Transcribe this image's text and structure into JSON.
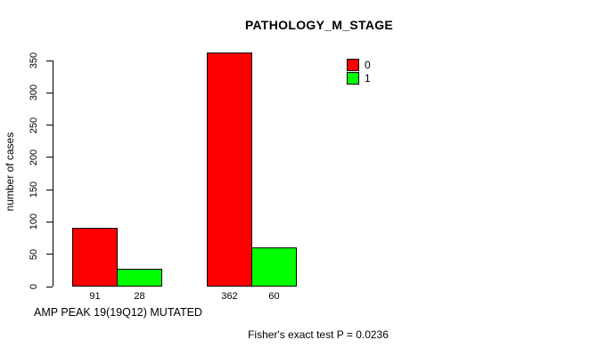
{
  "chart_data": {
    "type": "bar",
    "title": "PATHOLOGY_M_STAGE",
    "ylabel": "number of cases",
    "xlabel": "AMP PEAK 19(19Q12) MUTATED",
    "annotation": "Fisher's exact test P = 0.0236",
    "ylim": [
      0,
      350
    ],
    "yticks": [
      0,
      50,
      100,
      150,
      200,
      250,
      300,
      350
    ],
    "grid": false,
    "legend_position": "top-right-inside",
    "bar_value_labels_shown": true,
    "series": [
      {
        "name": "0",
        "color": "#ff0000",
        "values": [
          91,
          362
        ]
      },
      {
        "name": "1",
        "color": "#00ff00",
        "values": [
          28,
          60
        ]
      }
    ]
  }
}
